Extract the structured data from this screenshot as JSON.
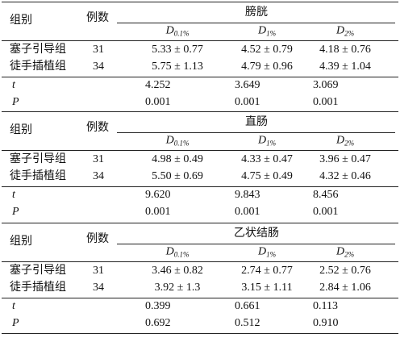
{
  "table": {
    "sections": [
      {
        "group_label": "组别",
        "count_label": "例数",
        "title": "膀胱",
        "columns": [
          {
            "symbol": "D",
            "subscript": "0.1%"
          },
          {
            "symbol": "D",
            "subscript": "1%"
          },
          {
            "symbol": "D",
            "subscript": "2%"
          }
        ],
        "rows": [
          {
            "group": "塞子引导组",
            "count": "31",
            "values": [
              "5.33 ± 0.77",
              "4.52 ± 0.79",
              "4.18 ± 0.76"
            ]
          },
          {
            "group": "徒手插植组",
            "count": "34",
            "values": [
              "5.75 ± 1.13",
              "4.79 ± 0.96",
              "4.39 ± 1.04"
            ]
          }
        ],
        "stats": [
          {
            "label": "t",
            "values": [
              "4.252",
              "3.649",
              "3.069"
            ]
          },
          {
            "label": "P",
            "values": [
              "0.001",
              "0.001",
              "0.001"
            ]
          }
        ]
      },
      {
        "group_label": "组别",
        "count_label": "例数",
        "title": "直肠",
        "columns": [
          {
            "symbol": "D",
            "subscript": "0.1%"
          },
          {
            "symbol": "D",
            "subscript": "1%"
          },
          {
            "symbol": "D",
            "subscript": "2%"
          }
        ],
        "rows": [
          {
            "group": "塞子引导组",
            "count": "31",
            "values": [
              "4.98 ± 0.49",
              "4.33 ± 0.47",
              "3.96 ± 0.47"
            ]
          },
          {
            "group": "徒手插植组",
            "count": "34",
            "values": [
              "5.50 ± 0.69",
              "4.75 ± 0.49",
              "4.32 ± 0.46"
            ]
          }
        ],
        "stats": [
          {
            "label": "t",
            "values": [
              "9.620",
              "9.843",
              "8.456"
            ]
          },
          {
            "label": "P",
            "values": [
              "0.001",
              "0.001",
              "0.001"
            ]
          }
        ]
      },
      {
        "group_label": "组别",
        "count_label": "例数",
        "title": "乙状结肠",
        "columns": [
          {
            "symbol": "D",
            "subscript": "0.1%"
          },
          {
            "symbol": "D",
            "subscript": "1%"
          },
          {
            "symbol": "D",
            "subscript": "2%"
          }
        ],
        "rows": [
          {
            "group": "塞子引导组",
            "count": "31",
            "values": [
              "3.46 ± 0.82",
              "2.74 ± 0.77",
              "2.52 ± 0.76"
            ]
          },
          {
            "group": "徒手插植组",
            "count": "34",
            "values": [
              "3.92 ± 1.3",
              "3.15 ± 1.11",
              "2.84 ± 1.06"
            ]
          }
        ],
        "stats": [
          {
            "label": "t",
            "values": [
              "0.399",
              "0.661",
              "0.113"
            ]
          },
          {
            "label": "P",
            "values": [
              "0.692",
              "0.512",
              "0.910"
            ]
          }
        ]
      }
    ]
  }
}
